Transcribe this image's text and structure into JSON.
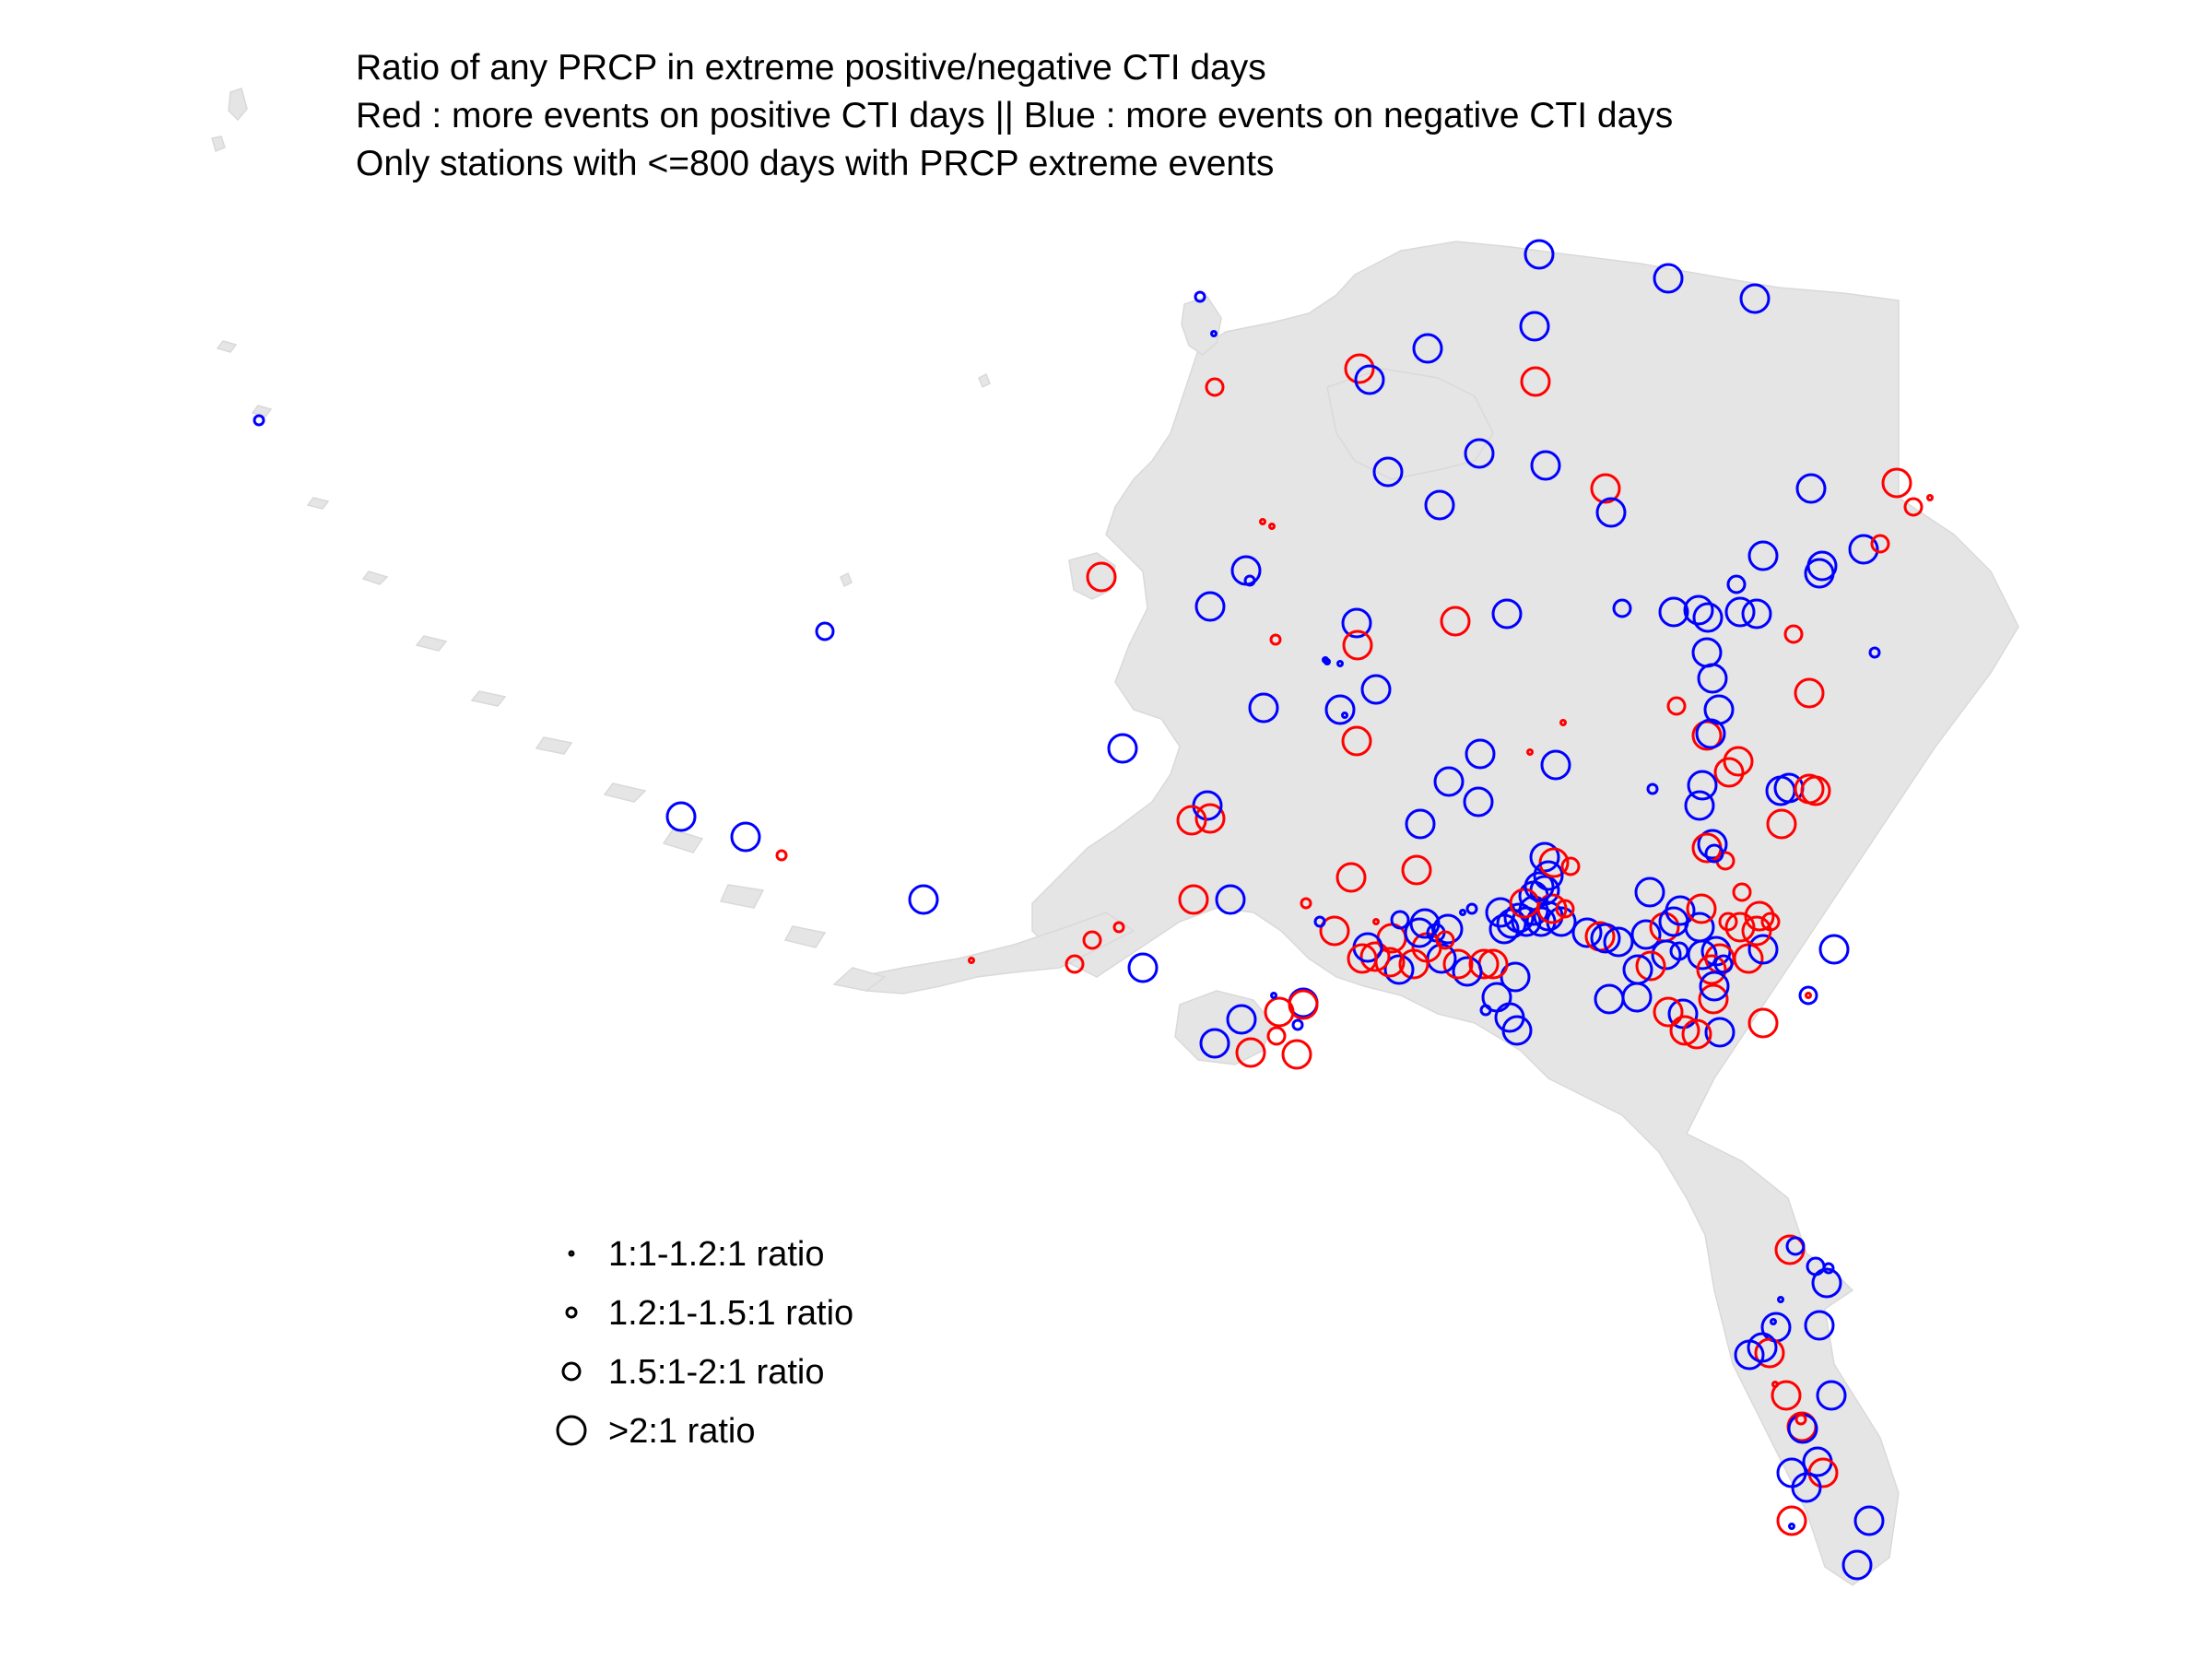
{
  "title": {
    "line1": "Ratio of any PRCP in extreme positive/negative CTI days",
    "line2": "Red : more events on positive CTI days || Blue : more events on negative CTI days",
    "line3": "Only stations with <=800 days with PRCP extreme events"
  },
  "colors": {
    "positive": "#ff0000",
    "negative": "#0000ff",
    "land": "#e5e5e5",
    "legend_symbol": "#000000"
  },
  "legend": {
    "items": [
      {
        "label": "1:1-1.2:1 ratio",
        "size_class": 1
      },
      {
        "label": "1.2:1-1.5:1 ratio",
        "size_class": 2
      },
      {
        "label": "1.5:1-2:1 ratio",
        "size_class": 3
      },
      {
        "label": ">2:1 ratio",
        "size_class": 4
      }
    ]
  },
  "chart_data": {
    "type": "scatter",
    "description_of_encoding": "",
    "series": [
      {
        "name": "",
        "color": "positive"
      },
      {
        "name": "",
        "color": "negative"
      }
    ]
  }
}
